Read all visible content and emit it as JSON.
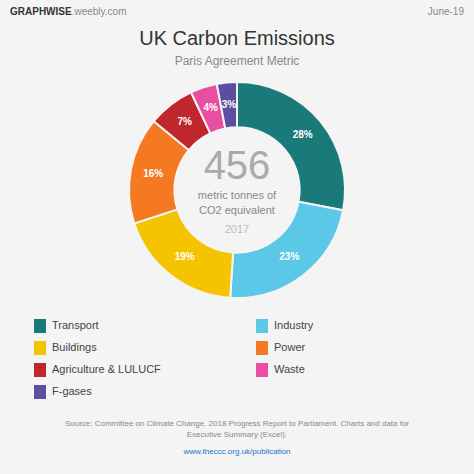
{
  "chart_data": {
    "type": "donut",
    "title": "UK Carbon Emissions",
    "subtitle": "Paris Agreement Metric",
    "categories": [
      "Transport",
      "Industry",
      "Buildings",
      "Power",
      "Agriculture & LULUCF",
      "Waste",
      "F-gases"
    ],
    "values": [
      28,
      23,
      19,
      16,
      7,
      4,
      3
    ],
    "value_labels": [
      "28%",
      "23%",
      "19%",
      "16%",
      "7%",
      "4%",
      "3%"
    ],
    "colors": [
      "#1a7a7a",
      "#5bc8e8",
      "#f5c400",
      "#f47920",
      "#c0272d",
      "#e84fa0",
      "#5b4ea0"
    ],
    "data_labels": true,
    "legend": "bottom",
    "annotations": [
      "456",
      "metric tonnes of",
      "CO2 equivalent",
      "2017",
      "GRAPHWISE",
      ".weebly.com",
      "June-19",
      "Source: Committee on Climate Change. 2018 Progress Report to Parliament. Charts and data for",
      "Executive Summary (Excel).",
      "www.theccc.org.uk/publication"
    ]
  }
}
